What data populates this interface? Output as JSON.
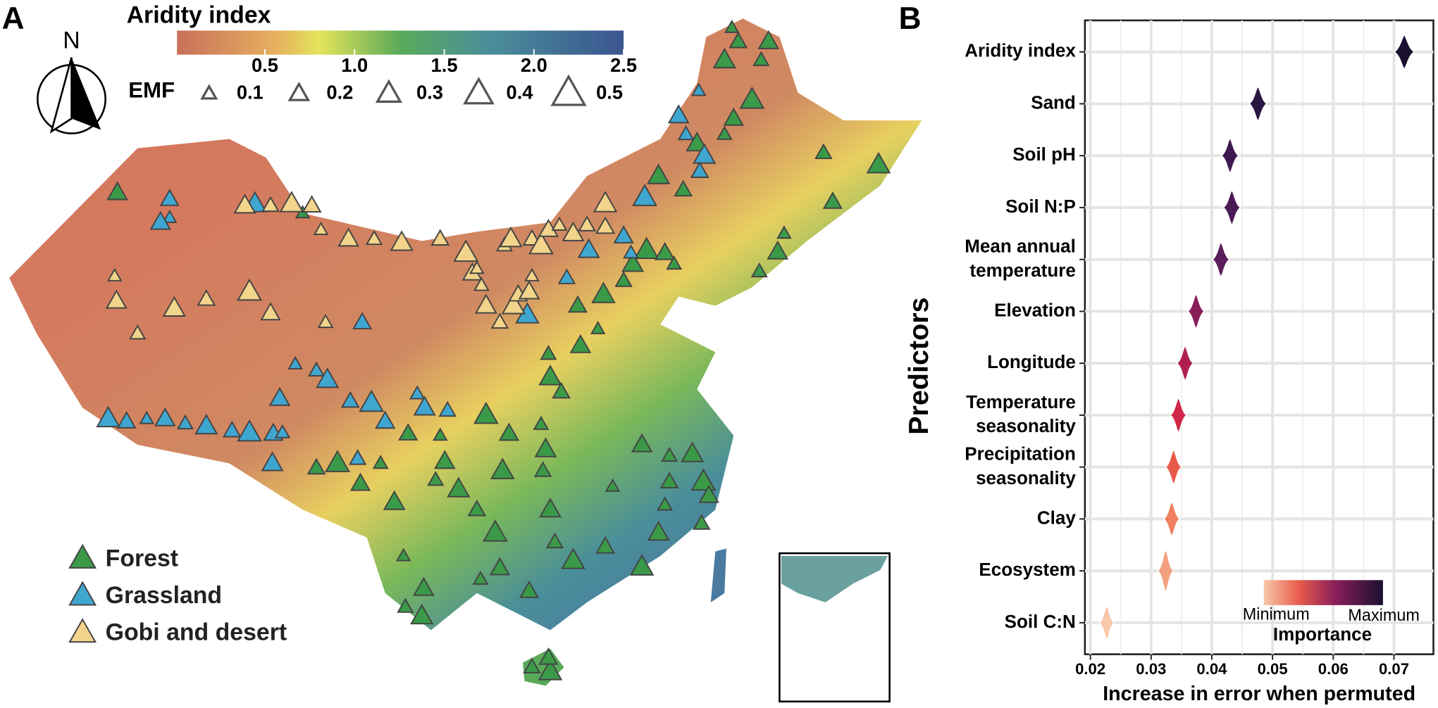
{
  "chart_data": [
    {
      "type": "map",
      "panel_label": "A",
      "title": "Aridity index",
      "colorbar": {
        "lim": [
          0.01,
          2.5
        ],
        "ticks": [
          0.5,
          {
            "value": 1.0,
            "label": "1.0"
          },
          1.5,
          {
            "value": 2.0,
            "label": "2.0"
          },
          2.5
        ]
      },
      "north": "N",
      "emf_label": "EMF",
      "emf_sizes": [
        0.1,
        0.2,
        0.3,
        0.4,
        0.5
      ],
      "series": [
        {
          "name": "Forest",
          "color": "#3a9a48"
        },
        {
          "name": "Grassland",
          "color": "#3fa6d0"
        },
        {
          "name": "Gobi and desert",
          "color": "#f2d48a"
        }
      ]
    },
    {
      "type": "violin",
      "panel_label": "B",
      "x_label": "Increase in error when permuted",
      "y_label": "Predictors",
      "categories": [
        "Aridity index",
        "Sand",
        "Soil pH",
        "Soil N:P",
        "Mean annual temperature",
        "Elevation",
        "Longitude",
        "Temperature seasonality",
        "Precipitation seasonality",
        "Clay",
        "Ecosystem",
        "Soil C:N"
      ],
      "values": [
        0.0717,
        0.0476,
        0.043,
        0.0433,
        0.0415,
        0.0374,
        0.0356,
        0.0345,
        0.0337,
        0.0334,
        0.0324,
        0.0227
      ],
      "colors": [
        "#1b1030",
        "#2a1540",
        "#3d1850",
        "#4a1a55",
        "#5a1e5a",
        "#8a1e5a",
        "#b01e50",
        "#d02848",
        "#e85a4a",
        "#f08060",
        "#f4a080",
        "#f8c8a8"
      ],
      "xlim": [
        0.0191,
        0.0765
      ],
      "xticks": [
        0.02,
        0.03,
        0.04,
        0.05,
        0.06,
        0.07
      ],
      "grid": true,
      "legend": {
        "title": "Importance",
        "min": "Minimum",
        "max": "Maximum"
      }
    }
  ]
}
